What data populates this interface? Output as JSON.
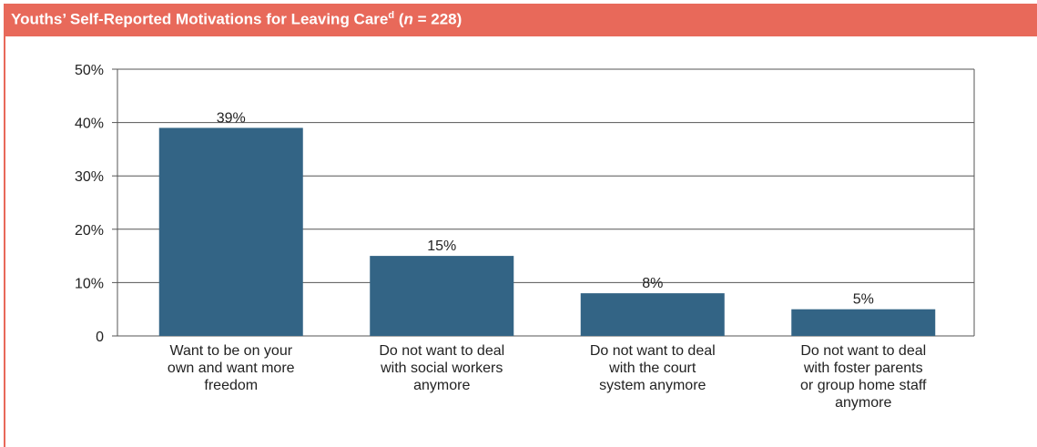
{
  "header": {
    "title": "Youths’ Self-Reported Motivations for Leaving Care",
    "footnote_marker": "d",
    "n_prefix": "(",
    "n_symbol": "n",
    "n_value": " = 228)"
  },
  "colors": {
    "header_bg": "#e8695a",
    "bar": "#336485",
    "grid": "#555555"
  },
  "chart_data": {
    "type": "bar",
    "title": "Youths’ Self-Reported Motivations for Leaving Care (n = 228)",
    "xlabel": "",
    "ylabel": "",
    "ylim": [
      0,
      50
    ],
    "yticks": [
      0,
      10,
      20,
      30,
      40,
      50
    ],
    "ytick_labels": [
      "0",
      "10%",
      "20%",
      "30%",
      "40%",
      "50%"
    ],
    "grid": true,
    "categories": [
      [
        "Want to be on your",
        "own and want more",
        "freedom"
      ],
      [
        "Do not want to deal",
        "with social workers",
        "anymore"
      ],
      [
        "Do not want to deal",
        "with the court",
        "system anymore"
      ],
      [
        "Do not want to deal",
        "with foster parents",
        "or group home staff",
        "anymore"
      ]
    ],
    "values": [
      39,
      15,
      8,
      5
    ],
    "data_labels": [
      "39%",
      "15%",
      "8%",
      "5%"
    ]
  }
}
